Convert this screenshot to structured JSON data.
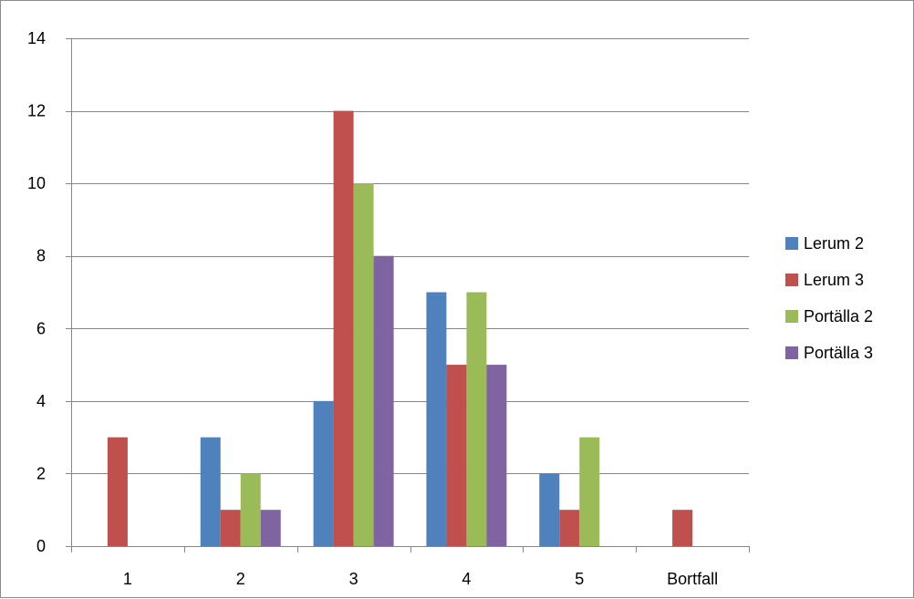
{
  "chart_data": {
    "type": "bar",
    "title": "",
    "xlabel": "",
    "ylabel": "",
    "categories": [
      "1",
      "2",
      "3",
      "4",
      "5",
      "Bortfall"
    ],
    "ylim": [
      0,
      14
    ],
    "yticks": [
      0,
      2,
      4,
      6,
      8,
      10,
      12,
      14
    ],
    "grid": true,
    "legend_position": "right",
    "series": [
      {
        "name": "Lerum 2",
        "color": "#4f81bd",
        "values": [
          0,
          3,
          4,
          7,
          2,
          0
        ]
      },
      {
        "name": "Lerum 3",
        "color": "#c0504d",
        "values": [
          3,
          1,
          12,
          5,
          1,
          1
        ]
      },
      {
        "name": "Portälla 2",
        "color": "#9bbb59",
        "values": [
          0,
          2,
          10,
          7,
          3,
          0
        ]
      },
      {
        "name": "Portälla 3",
        "color": "#8064a2",
        "values": [
          0,
          1,
          8,
          5,
          0,
          0
        ]
      }
    ]
  }
}
